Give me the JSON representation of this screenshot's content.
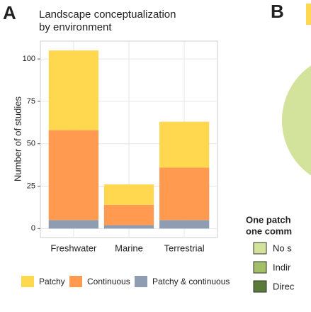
{
  "chart_data": {
    "type": "stacked_bar",
    "panel_label": "A",
    "title_lines": [
      "Landscape conceptualization",
      "by environment"
    ],
    "y_label": "Number of of studies",
    "categories": [
      "Freshwater",
      "Marine",
      "Terrestrial"
    ],
    "series": [
      {
        "name": "Patchy",
        "color": "#ffd84f",
        "values": [
          47,
          12,
          27
        ]
      },
      {
        "name": "Continuous",
        "color": "#ff9a50",
        "values": [
          53,
          12,
          31
        ]
      },
      {
        "name": "Patchy & continuous",
        "color": "#8e9db2",
        "values": [
          5,
          2,
          5
        ]
      }
    ],
    "ylim": [
      -5.3,
      110.5
    ],
    "yticks": [
      0,
      25,
      50,
      75,
      100
    ],
    "grid": true
  },
  "panel_b": {
    "panel_label": "B",
    "legend_title_lines": [
      "One patch",
      "one comm"
    ],
    "legend": [
      {
        "label": "No s",
        "color": "#d3e39b"
      },
      {
        "label": "Indir",
        "color": "#a2bf68"
      },
      {
        "label": "Direc",
        "color": "#5a7a37"
      }
    ]
  }
}
